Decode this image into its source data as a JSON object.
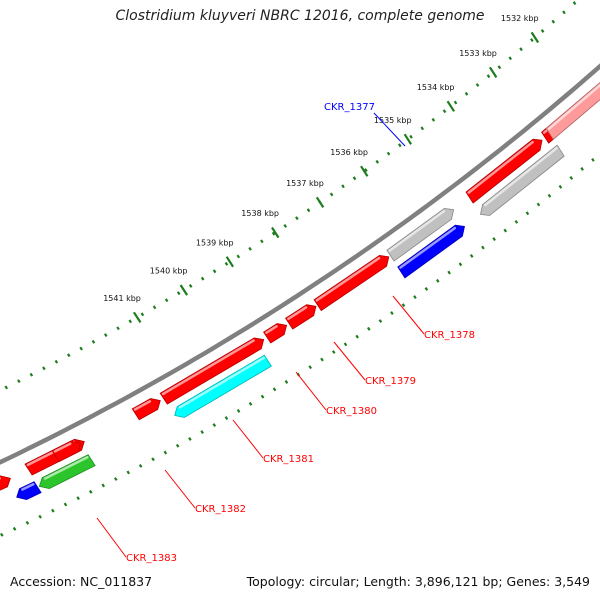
{
  "title": "Clostridium kluyveri NBRC 12016, complete genome",
  "footer": {
    "accession": "Accession: NC_011837",
    "summary": "Topology: circular; Length: 3,896,121 bp; Genes: 3,549"
  },
  "colors": {
    "genome_line": "#808080",
    "tick": "#1e7d1e",
    "red_gene": "#ff0000",
    "blue_gene": "#0000ff",
    "cyan_gene": "#00ffff",
    "green_gene": "#2cc62c",
    "gray_gene": "#c0c0c0",
    "pink_gene": "#ff9a9a",
    "label_red": "#ff0000",
    "label_blue": "#0000ff"
  },
  "ticks": [
    {
      "label": "1532 kbp"
    },
    {
      "label": "1533 kbp"
    },
    {
      "label": "1534 kbp"
    },
    {
      "label": "1535 kbp"
    },
    {
      "label": "1536 kbp"
    },
    {
      "label": "1537 kbp"
    },
    {
      "label": "1538 kbp"
    },
    {
      "label": "1539 kbp"
    },
    {
      "label": "1540 kbp"
    },
    {
      "label": "1541 kbp"
    }
  ],
  "genes": [
    {
      "name": "CKR_1377",
      "color": "blue",
      "strand": "+",
      "labeled": true,
      "label_color": "blue"
    },
    {
      "name": "CKR_1378",
      "color": "red",
      "strand": "+",
      "labeled": true,
      "label_color": "red"
    },
    {
      "name": "CKR_1379",
      "color": "red",
      "strand": "+",
      "labeled": true,
      "label_color": "red"
    },
    {
      "name": "CKR_1380",
      "color": "red",
      "strand": "+",
      "labeled": true,
      "label_color": "red"
    },
    {
      "name": "CKR_1381",
      "color": "red",
      "strand": "+",
      "labeled": true,
      "label_color": "red"
    },
    {
      "name": "CKR_1382",
      "color": "red",
      "strand": "+",
      "labeled": true,
      "label_color": "red"
    },
    {
      "name": "CKR_1383",
      "color": "red",
      "strand": "+",
      "labeled": true,
      "label_color": "red"
    },
    {
      "name": "",
      "color": "gray",
      "strand": "+",
      "labeled": false
    },
    {
      "name": "",
      "color": "red",
      "strand": "+",
      "labeled": false
    },
    {
      "name": "",
      "color": "red",
      "strand": "+",
      "labeled": false
    },
    {
      "name": "",
      "color": "gray",
      "strand": "-",
      "labeled": false
    },
    {
      "name": "",
      "color": "pink",
      "strand": "+",
      "labeled": false
    },
    {
      "name": "",
      "color": "cyan",
      "strand": "-",
      "labeled": false
    },
    {
      "name": "",
      "color": "red",
      "strand": "+",
      "labeled": false
    },
    {
      "name": "",
      "color": "green",
      "strand": "-",
      "labeled": false
    },
    {
      "name": "",
      "color": "blue",
      "strand": "-",
      "labeled": false
    },
    {
      "name": "",
      "color": "red",
      "strand": "+",
      "labeled": false
    }
  ]
}
